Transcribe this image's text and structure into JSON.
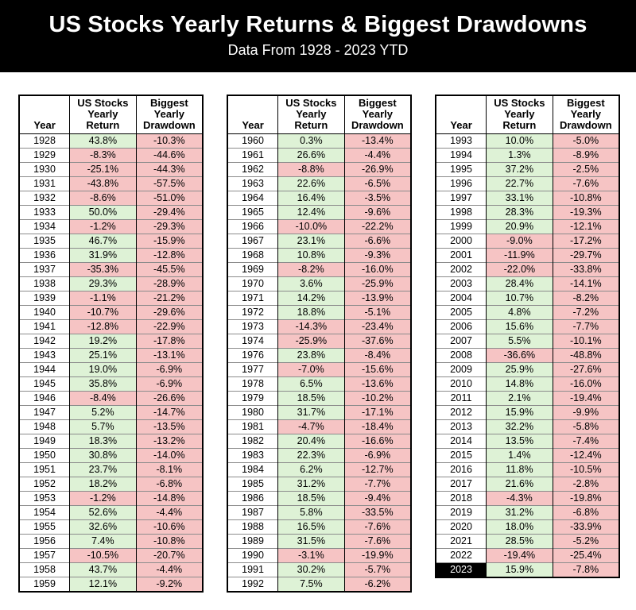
{
  "banner": {
    "title": "US Stocks Yearly Returns & Biggest Drawdowns",
    "subtitle": "Data From 1928 - 2023 YTD"
  },
  "colors": {
    "banner_bg": "#000000",
    "banner_fg": "#ffffff",
    "positive_bg": "#def2d6",
    "negative_bg": "#f6c4c4",
    "highlight_year_bg": "#000000",
    "highlight_year_fg": "#ffffff",
    "grid_black": "#000000",
    "grid_gray": "#8c8c8c"
  },
  "chart_data": {
    "type": "table",
    "title": "US Stocks Yearly Returns & Biggest Drawdowns",
    "subtitle": "Data From 1928 - 2023 YTD",
    "columns": [
      "Year",
      "US Stocks\nYearly\nReturn",
      "Biggest\nYearly\nDrawdown"
    ],
    "highlight_year": "2023",
    "tables": [
      {
        "rows": [
          [
            "1928",
            "43.8%",
            "-10.3%"
          ],
          [
            "1929",
            "-8.3%",
            "-44.6%"
          ],
          [
            "1930",
            "-25.1%",
            "-44.3%"
          ],
          [
            "1931",
            "-43.8%",
            "-57.5%"
          ],
          [
            "1932",
            "-8.6%",
            "-51.0%"
          ],
          [
            "1933",
            "50.0%",
            "-29.4%"
          ],
          [
            "1934",
            "-1.2%",
            "-29.3%"
          ],
          [
            "1935",
            "46.7%",
            "-15.9%"
          ],
          [
            "1936",
            "31.9%",
            "-12.8%"
          ],
          [
            "1937",
            "-35.3%",
            "-45.5%"
          ],
          [
            "1938",
            "29.3%",
            "-28.9%"
          ],
          [
            "1939",
            "-1.1%",
            "-21.2%"
          ],
          [
            "1940",
            "-10.7%",
            "-29.6%"
          ],
          [
            "1941",
            "-12.8%",
            "-22.9%"
          ],
          [
            "1942",
            "19.2%",
            "-17.8%"
          ],
          [
            "1943",
            "25.1%",
            "-13.1%"
          ],
          [
            "1944",
            "19.0%",
            "-6.9%"
          ],
          [
            "1945",
            "35.8%",
            "-6.9%"
          ],
          [
            "1946",
            "-8.4%",
            "-26.6%"
          ],
          [
            "1947",
            "5.2%",
            "-14.7%"
          ],
          [
            "1948",
            "5.7%",
            "-13.5%"
          ],
          [
            "1949",
            "18.3%",
            "-13.2%"
          ],
          [
            "1950",
            "30.8%",
            "-14.0%"
          ],
          [
            "1951",
            "23.7%",
            "-8.1%"
          ],
          [
            "1952",
            "18.2%",
            "-6.8%"
          ],
          [
            "1953",
            "-1.2%",
            "-14.8%"
          ],
          [
            "1954",
            "52.6%",
            "-4.4%"
          ],
          [
            "1955",
            "32.6%",
            "-10.6%"
          ],
          [
            "1956",
            "7.4%",
            "-10.8%"
          ],
          [
            "1957",
            "-10.5%",
            "-20.7%"
          ],
          [
            "1958",
            "43.7%",
            "-4.4%"
          ],
          [
            "1959",
            "12.1%",
            "-9.2%"
          ]
        ]
      },
      {
        "rows": [
          [
            "1960",
            "0.3%",
            "-13.4%"
          ],
          [
            "1961",
            "26.6%",
            "-4.4%"
          ],
          [
            "1962",
            "-8.8%",
            "-26.9%"
          ],
          [
            "1963",
            "22.6%",
            "-6.5%"
          ],
          [
            "1964",
            "16.4%",
            "-3.5%"
          ],
          [
            "1965",
            "12.4%",
            "-9.6%"
          ],
          [
            "1966",
            "-10.0%",
            "-22.2%"
          ],
          [
            "1967",
            "23.1%",
            "-6.6%"
          ],
          [
            "1968",
            "10.8%",
            "-9.3%"
          ],
          [
            "1969",
            "-8.2%",
            "-16.0%"
          ],
          [
            "1970",
            "3.6%",
            "-25.9%"
          ],
          [
            "1971",
            "14.2%",
            "-13.9%"
          ],
          [
            "1972",
            "18.8%",
            "-5.1%"
          ],
          [
            "1973",
            "-14.3%",
            "-23.4%"
          ],
          [
            "1974",
            "-25.9%",
            "-37.6%"
          ],
          [
            "1976",
            "23.8%",
            "-8.4%"
          ],
          [
            "1977",
            "-7.0%",
            "-15.6%"
          ],
          [
            "1978",
            "6.5%",
            "-13.6%"
          ],
          [
            "1979",
            "18.5%",
            "-10.2%"
          ],
          [
            "1980",
            "31.7%",
            "-17.1%"
          ],
          [
            "1981",
            "-4.7%",
            "-18.4%"
          ],
          [
            "1982",
            "20.4%",
            "-16.6%"
          ],
          [
            "1983",
            "22.3%",
            "-6.9%"
          ],
          [
            "1984",
            "6.2%",
            "-12.7%"
          ],
          [
            "1985",
            "31.2%",
            "-7.7%"
          ],
          [
            "1986",
            "18.5%",
            "-9.4%"
          ],
          [
            "1987",
            "5.8%",
            "-33.5%"
          ],
          [
            "1988",
            "16.5%",
            "-7.6%"
          ],
          [
            "1989",
            "31.5%",
            "-7.6%"
          ],
          [
            "1990",
            "-3.1%",
            "-19.9%"
          ],
          [
            "1991",
            "30.2%",
            "-5.7%"
          ],
          [
            "1992",
            "7.5%",
            "-6.2%"
          ]
        ]
      },
      {
        "rows": [
          [
            "1993",
            "10.0%",
            "-5.0%"
          ],
          [
            "1994",
            "1.3%",
            "-8.9%"
          ],
          [
            "1995",
            "37.2%",
            "-2.5%"
          ],
          [
            "1996",
            "22.7%",
            "-7.6%"
          ],
          [
            "1997",
            "33.1%",
            "-10.8%"
          ],
          [
            "1998",
            "28.3%",
            "-19.3%"
          ],
          [
            "1999",
            "20.9%",
            "-12.1%"
          ],
          [
            "2000",
            "-9.0%",
            "-17.2%"
          ],
          [
            "2001",
            "-11.9%",
            "-29.7%"
          ],
          [
            "2002",
            "-22.0%",
            "-33.8%"
          ],
          [
            "2003",
            "28.4%",
            "-14.1%"
          ],
          [
            "2004",
            "10.7%",
            "-8.2%"
          ],
          [
            "2005",
            "4.8%",
            "-7.2%"
          ],
          [
            "2006",
            "15.6%",
            "-7.7%"
          ],
          [
            "2007",
            "5.5%",
            "-10.1%"
          ],
          [
            "2008",
            "-36.6%",
            "-48.8%"
          ],
          [
            "2009",
            "25.9%",
            "-27.6%"
          ],
          [
            "2010",
            "14.8%",
            "-16.0%"
          ],
          [
            "2011",
            "2.1%",
            "-19.4%"
          ],
          [
            "2012",
            "15.9%",
            "-9.9%"
          ],
          [
            "2013",
            "32.2%",
            "-5.8%"
          ],
          [
            "2014",
            "13.5%",
            "-7.4%"
          ],
          [
            "2015",
            "1.4%",
            "-12.4%"
          ],
          [
            "2016",
            "11.8%",
            "-10.5%"
          ],
          [
            "2017",
            "21.6%",
            "-2.8%"
          ],
          [
            "2018",
            "-4.3%",
            "-19.8%"
          ],
          [
            "2019",
            "31.2%",
            "-6.8%"
          ],
          [
            "2020",
            "18.0%",
            "-33.9%"
          ],
          [
            "2021",
            "28.5%",
            "-5.2%"
          ],
          [
            "2022",
            "-19.4%",
            "-25.4%"
          ],
          [
            "2023",
            "15.9%",
            "-7.8%"
          ]
        ]
      }
    ]
  }
}
